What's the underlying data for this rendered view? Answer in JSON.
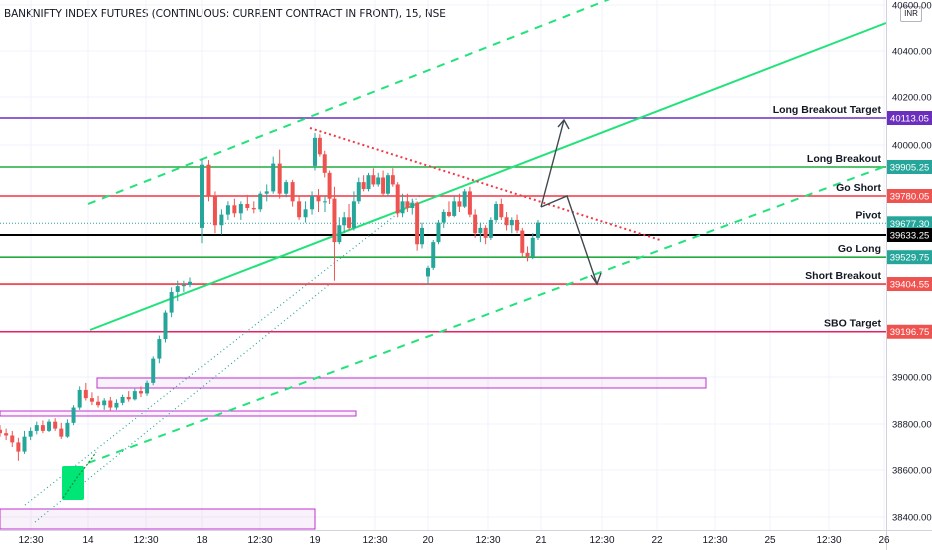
{
  "header": {
    "title": "BANKNIFTY INDEX FUTURES (CONTINUOUS: CURRENT CONTRACT IN FRONT), 15, NSE",
    "currency": "INR"
  },
  "colors": {
    "up": "#26a69a",
    "down": "#ef5350",
    "green_level": "#22ab3f",
    "red_level": "#f23645",
    "purple_level": "#6b2fbe",
    "pink_level": "#e91e63",
    "trend": "#22e27a",
    "zone": "#c030d0"
  },
  "chart_data": {
    "type": "candlestick",
    "y_range": [
      38400,
      40600
    ],
    "y_ticks": [
      "38400.00",
      "38600.00",
      "38800.00",
      "39000.00",
      "39200.00",
      "39400.00",
      "40000.00",
      "40200.00",
      "40400.00",
      "40600.00"
    ],
    "x_ticks": [
      "12:30",
      "14",
      "12:30",
      "18",
      "12:30",
      "19",
      "12:30",
      "20",
      "12:30",
      "21",
      "12:30",
      "22",
      "12:30",
      "25",
      "12:30",
      "26"
    ],
    "levels": [
      {
        "label": "Long Breakout Target",
        "value": "40113.05",
        "price": 40113.05,
        "color": "#6b2fbe",
        "tag_color": "#6b2fbe"
      },
      {
        "label": "Long Breakout",
        "value": "39905.25",
        "price": 39905.25,
        "color": "#22ab3f",
        "tag_color": "#26a69a"
      },
      {
        "label": "Go Short",
        "value": "39780.05",
        "price": 39780.05,
        "color": "#f23645",
        "tag_color": "#ef5350"
      },
      {
        "label": "Pivot",
        "value": "39677.30",
        "price": 39677.3,
        "color": "#26a69a",
        "tag_color": "#26a69a"
      },
      {
        "label": "",
        "value": "39633.25",
        "price": 39633.25,
        "color": "#000000",
        "tag_color": "#000000"
      },
      {
        "label": "Go Long",
        "value": "39529.75",
        "price": 39529.75,
        "color": "#22ab3f",
        "tag_color": "#26a69a"
      },
      {
        "label": "Short Breakout",
        "value": "39404.55",
        "price": 39404.55,
        "color": "#f23645",
        "tag_color": "#ef5350"
      },
      {
        "label": "SBO Target",
        "value": "39196.75",
        "price": 39196.75,
        "color": "#e91e63",
        "tag_color": "#ef5350"
      }
    ],
    "candles": [
      [
        38775,
        38795,
        38745,
        38760
      ],
      [
        38760,
        38780,
        38730,
        38750
      ],
      [
        38750,
        38770,
        38700,
        38720
      ],
      [
        38720,
        38740,
        38640,
        38680
      ],
      [
        38680,
        38770,
        38670,
        38745
      ],
      [
        38745,
        38785,
        38730,
        38770
      ],
      [
        38770,
        38810,
        38755,
        38795
      ],
      [
        38795,
        38815,
        38760,
        38770
      ],
      [
        38770,
        38820,
        38765,
        38810
      ],
      [
        38810,
        38825,
        38770,
        38780
      ],
      [
        38780,
        38805,
        38735,
        38745
      ],
      [
        38745,
        38820,
        38740,
        38805
      ],
      [
        38805,
        38880,
        38795,
        38870
      ],
      [
        38870,
        38960,
        38860,
        38945
      ],
      [
        38945,
        38975,
        38900,
        38910
      ],
      [
        38910,
        38935,
        38880,
        38895
      ],
      [
        38895,
        38920,
        38870,
        38880
      ],
      [
        38880,
        38910,
        38860,
        38900
      ],
      [
        38900,
        38915,
        38855,
        38870
      ],
      [
        38870,
        38905,
        38860,
        38890
      ],
      [
        38890,
        38925,
        38880,
        38915
      ],
      [
        38915,
        38940,
        38895,
        38905
      ],
      [
        38905,
        38950,
        38900,
        38940
      ],
      [
        38940,
        38960,
        38915,
        38930
      ],
      [
        38930,
        38985,
        38920,
        38975
      ],
      [
        38975,
        39090,
        38965,
        39080
      ],
      [
        39080,
        39180,
        39060,
        39165
      ],
      [
        39165,
        39290,
        39150,
        39280
      ],
      [
        39280,
        39390,
        39260,
        39370
      ],
      [
        39370,
        39420,
        39330,
        39395
      ],
      [
        39395,
        39420,
        39370,
        39400
      ],
      [
        39400,
        39435,
        39390,
        39415
      ],
      [
        39660,
        39940,
        39595,
        39915
      ],
      [
        39915,
        39935,
        39760,
        39780
      ],
      [
        39780,
        39800,
        39640,
        39670
      ],
      [
        39670,
        39730,
        39635,
        39710
      ],
      [
        39710,
        39760,
        39690,
        39745
      ],
      [
        39745,
        39770,
        39700,
        39715
      ],
      [
        39715,
        39760,
        39690,
        39750
      ],
      [
        39750,
        39785,
        39725,
        39735
      ],
      [
        39735,
        39760,
        39715,
        39730
      ],
      [
        39730,
        39800,
        39720,
        39790
      ],
      [
        39790,
        39830,
        39760,
        39800
      ],
      [
        39800,
        39950,
        39790,
        39920
      ],
      [
        39920,
        39980,
        39770,
        39790
      ],
      [
        39790,
        39850,
        39775,
        39840
      ],
      [
        39840,
        39850,
        39740,
        39760
      ],
      [
        39760,
        39780,
        39690,
        39700
      ],
      [
        39700,
        39760,
        39680,
        39730
      ],
      [
        39730,
        39800,
        39710,
        39780
      ],
      [
        39780,
        39810,
        39720,
        39760
      ],
      [
        39760,
        39780,
        39720,
        39760
      ],
      [
        39910,
        40050,
        39890,
        40030
      ],
      [
        40030,
        40045,
        39950,
        39960
      ],
      [
        39960,
        39975,
        39860,
        39880
      ],
      [
        39880,
        39890,
        39750,
        39770
      ],
      [
        39770,
        39820,
        39420,
        39600
      ],
      [
        39600,
        39700,
        39590,
        39670
      ],
      [
        39670,
        39720,
        39640,
        39700
      ],
      [
        39700,
        39750,
        39650,
        39660
      ],
      [
        39660,
        39800,
        39650,
        39760
      ],
      [
        39760,
        39860,
        39750,
        39840
      ],
      [
        39840,
        39870,
        39800,
        39810
      ],
      [
        39810,
        39880,
        39800,
        39870
      ],
      [
        39870,
        39900,
        39820,
        39830
      ],
      [
        39830,
        39880,
        39820,
        39860
      ],
      [
        39860,
        39890,
        39780,
        39790
      ],
      [
        39790,
        39880,
        39780,
        39870
      ],
      [
        39870,
        39900,
        39820,
        39830
      ],
      [
        39830,
        39840,
        39700,
        39715
      ],
      [
        39715,
        39790,
        39700,
        39760
      ],
      [
        39760,
        39790,
        39720,
        39735
      ],
      [
        39735,
        39770,
        39710,
        39755
      ],
      [
        39755,
        39760,
        39560,
        39590
      ],
      [
        39590,
        39680,
        39570,
        39660
      ],
      [
        39440,
        39490,
        39400,
        39480
      ],
      [
        39480,
        39610,
        39470,
        39600
      ],
      [
        39600,
        39690,
        39590,
        39680
      ],
      [
        39680,
        39730,
        39660,
        39720
      ],
      [
        39720,
        39760,
        39700,
        39705
      ],
      [
        39705,
        39780,
        39700,
        39760
      ],
      [
        39760,
        39790,
        39720,
        39740
      ],
      [
        39740,
        39810,
        39735,
        39800
      ],
      [
        39800,
        39820,
        39700,
        39710
      ],
      [
        39710,
        39730,
        39620,
        39640
      ],
      [
        39640,
        39680,
        39600,
        39660
      ],
      [
        39660,
        39670,
        39590,
        39620
      ],
      [
        39620,
        39700,
        39610,
        39690
      ],
      [
        39690,
        39760,
        39680,
        39750
      ],
      [
        39750,
        39770,
        39690,
        39700
      ],
      [
        39700,
        39720,
        39650,
        39670
      ],
      [
        39670,
        39700,
        39640,
        39690
      ],
      [
        39690,
        39710,
        39640,
        39650
      ],
      [
        39650,
        39660,
        39530,
        39550
      ],
      [
        39550,
        39580,
        39510,
        39530
      ],
      [
        39530,
        39640,
        39520,
        39620
      ],
      [
        39620,
        39690,
        39610,
        39680
      ],
      [
        39680,
        39720,
        39660,
        39710
      ]
    ]
  }
}
